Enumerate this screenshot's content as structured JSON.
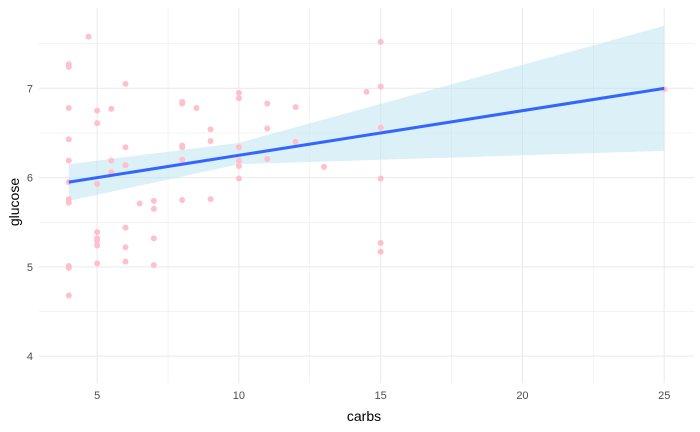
{
  "chart_data": {
    "type": "scatter",
    "xlabel": "carbs",
    "ylabel": "glucose",
    "xlim": [
      2.95,
      26.05
    ],
    "ylim": [
      3.7,
      7.9
    ],
    "x_ticks": [
      5,
      10,
      15,
      20,
      25
    ],
    "x_minor_ticks": [
      7.5,
      12.5,
      17.5,
      22.5
    ],
    "y_ticks": [
      4,
      5,
      6,
      7
    ],
    "y_minor_ticks": [
      4.5,
      5.5,
      6.5,
      7.5
    ],
    "grid": true,
    "colors": {
      "points": "#ffc0cb",
      "line": "#3366ff",
      "band": "#bfe3f0",
      "grid": "#ebebeb"
    },
    "points": [
      {
        "x": 4,
        "y": 7.27
      },
      {
        "x": 4,
        "y": 7.24
      },
      {
        "x": 4.7,
        "y": 7.58
      },
      {
        "x": 4,
        "y": 6.78
      },
      {
        "x": 4,
        "y": 6.43
      },
      {
        "x": 4,
        "y": 6.19
      },
      {
        "x": 4,
        "y": 5.95
      },
      {
        "x": 4,
        "y": 5.76
      },
      {
        "x": 4,
        "y": 5.72
      },
      {
        "x": 4,
        "y": 5.01
      },
      {
        "x": 4,
        "y": 4.99
      },
      {
        "x": 4,
        "y": 4.68
      },
      {
        "x": 5,
        "y": 6.75
      },
      {
        "x": 5,
        "y": 6.61
      },
      {
        "x": 5,
        "y": 5.93
      },
      {
        "x": 5,
        "y": 5.39
      },
      {
        "x": 5,
        "y": 5.32
      },
      {
        "x": 5,
        "y": 5.29
      },
      {
        "x": 5,
        "y": 5.24
      },
      {
        "x": 5,
        "y": 5.04
      },
      {
        "x": 5.5,
        "y": 6.77
      },
      {
        "x": 5.5,
        "y": 6.19
      },
      {
        "x": 5.5,
        "y": 6.06
      },
      {
        "x": 6,
        "y": 7.05
      },
      {
        "x": 6,
        "y": 6.34
      },
      {
        "x": 6,
        "y": 6.14
      },
      {
        "x": 6,
        "y": 5.44
      },
      {
        "x": 6,
        "y": 5.22
      },
      {
        "x": 6,
        "y": 5.06
      },
      {
        "x": 6.5,
        "y": 5.71
      },
      {
        "x": 7,
        "y": 5.74
      },
      {
        "x": 7,
        "y": 5.65
      },
      {
        "x": 7,
        "y": 5.32
      },
      {
        "x": 7,
        "y": 5.02
      },
      {
        "x": 8,
        "y": 6.85
      },
      {
        "x": 8,
        "y": 6.83
      },
      {
        "x": 8,
        "y": 6.36
      },
      {
        "x": 8,
        "y": 6.34
      },
      {
        "x": 8,
        "y": 6.2
      },
      {
        "x": 8,
        "y": 5.75
      },
      {
        "x": 8.5,
        "y": 6.78
      },
      {
        "x": 9,
        "y": 6.54
      },
      {
        "x": 9,
        "y": 6.41
      },
      {
        "x": 9,
        "y": 5.76
      },
      {
        "x": 10,
        "y": 6.95
      },
      {
        "x": 10,
        "y": 6.89
      },
      {
        "x": 10,
        "y": 6.34
      },
      {
        "x": 10,
        "y": 6.19
      },
      {
        "x": 10,
        "y": 6.13
      },
      {
        "x": 10,
        "y": 5.99
      },
      {
        "x": 11,
        "y": 6.83
      },
      {
        "x": 11,
        "y": 6.55
      },
      {
        "x": 11,
        "y": 6.21
      },
      {
        "x": 12,
        "y": 6.79
      },
      {
        "x": 12,
        "y": 6.4
      },
      {
        "x": 13,
        "y": 6.12
      },
      {
        "x": 14.5,
        "y": 6.96
      },
      {
        "x": 15,
        "y": 7.52
      },
      {
        "x": 15,
        "y": 7.02
      },
      {
        "x": 15,
        "y": 6.56
      },
      {
        "x": 15,
        "y": 5.99
      },
      {
        "x": 15,
        "y": 5.27
      },
      {
        "x": 15,
        "y": 5.17
      },
      {
        "x": 25,
        "y": 6.99
      }
    ],
    "fit": {
      "x": [
        4,
        25
      ],
      "y": [
        5.95,
        7.0
      ]
    },
    "band": {
      "x": [
        4,
        10,
        25
      ],
      "upper": [
        6.15,
        6.39,
        7.7
      ],
      "lower": [
        5.74,
        6.15,
        6.3
      ]
    }
  }
}
